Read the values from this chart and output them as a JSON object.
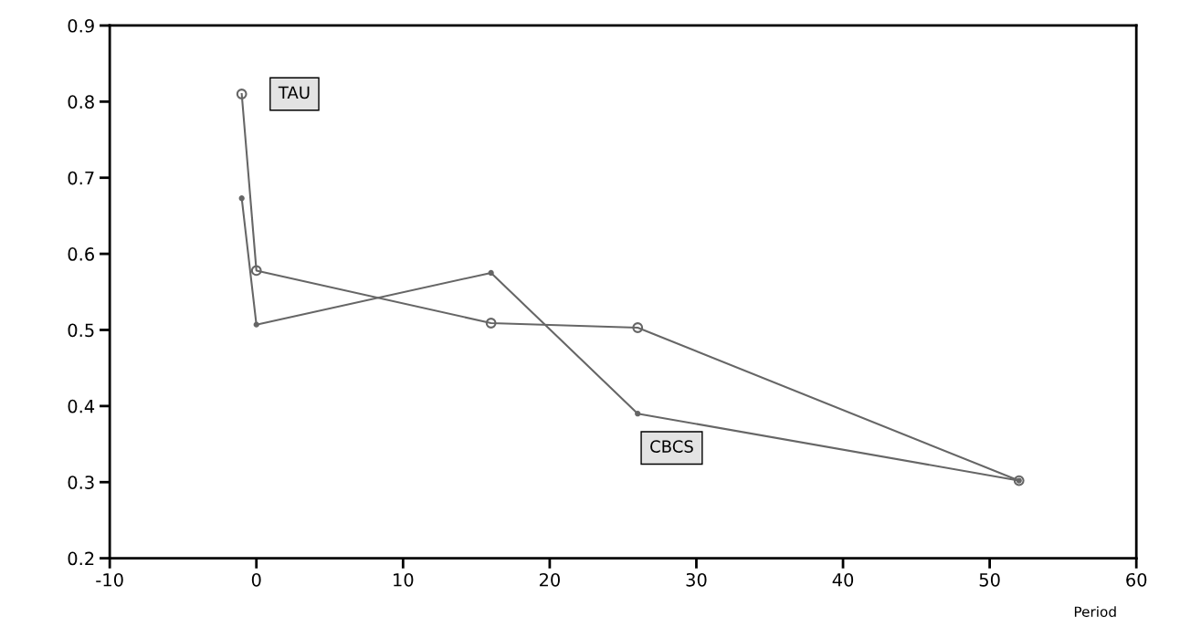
{
  "chart_data": {
    "type": "line",
    "xlabel": "Period",
    "series": [
      {
        "name": "TAU",
        "color": "#666666",
        "marker": "circle",
        "x": [
          -1,
          0,
          16,
          26,
          52
        ],
        "values": [
          0.81,
          0.578,
          0.509,
          0.503,
          0.302
        ]
      },
      {
        "name": "CBCS",
        "color": "#666666",
        "marker": "circle",
        "x": [
          -1,
          0,
          16,
          26,
          52
        ],
        "values": [
          0.673,
          0.507,
          0.575,
          0.39,
          0.302
        ]
      }
    ],
    "xlim": [
      -10,
      60
    ],
    "xticks": [
      -10,
      0,
      10,
      20,
      30,
      40,
      50,
      60
    ],
    "ylim": [
      0.2,
      0.9
    ],
    "yticks": [
      0.2,
      0.3,
      0.4,
      0.5,
      0.6,
      0.7,
      0.8,
      0.9
    ],
    "grid": false,
    "legend": false,
    "line_style": "solid"
  }
}
